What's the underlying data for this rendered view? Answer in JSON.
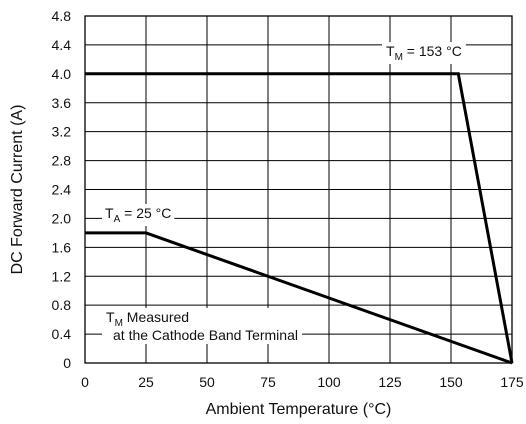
{
  "chart_data": {
    "type": "line",
    "xlabel": "Ambient Temperature (°C)",
    "ylabel": "DC Forward Current (A)",
    "xlim": [
      0,
      175
    ],
    "ylim": [
      0,
      4.8
    ],
    "x_ticks": [
      "0",
      "25",
      "50",
      "75",
      "100",
      "125",
      "150",
      "175"
    ],
    "y_ticks": [
      "0",
      "0.4",
      "0.8",
      "1.2",
      "1.6",
      "2.0",
      "2.4",
      "2.8",
      "3.2",
      "3.6",
      "4.0",
      "4.4",
      "4.8"
    ],
    "grid": true,
    "series": [
      {
        "points": [
          [
            0,
            4.0
          ],
          [
            153,
            4.0
          ],
          [
            175,
            0
          ]
        ]
      },
      {
        "points": [
          [
            0,
            1.8
          ],
          [
            25,
            1.8
          ],
          [
            175,
            0
          ]
        ]
      }
    ],
    "annotations": {
      "tm_label": {
        "main": "T",
        "sub": "M",
        "rest": " = 153 °C"
      },
      "ta_label": {
        "main": "T",
        "sub": "A",
        "rest": " = 25 °C"
      },
      "note_line1": {
        "main": "T",
        "sub": "M",
        "rest": " Measured"
      },
      "note_line2": "at the Cathode Band Terminal"
    }
  }
}
